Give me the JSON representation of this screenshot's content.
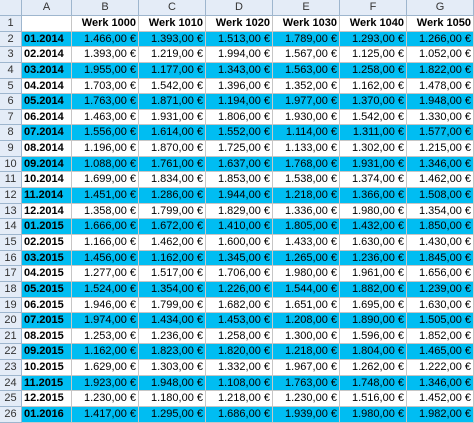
{
  "sheet": {
    "column_letters": [
      "A",
      "B",
      "C",
      "D",
      "E",
      "F",
      "G"
    ],
    "row_numbers": [
      1,
      2,
      3,
      4,
      5,
      6,
      7,
      8,
      9,
      10,
      11,
      12,
      13,
      14,
      15,
      16,
      17,
      18,
      19,
      20,
      21,
      22,
      23,
      24,
      25,
      26
    ],
    "table": {
      "columns": [
        "Werk 1000",
        "Werk 1010",
        "Werk 1020",
        "Werk 1030",
        "Werk 1040",
        "Werk 1050"
      ],
      "rows": [
        {
          "month": "01.2014",
          "values": [
            "1.466,00 €",
            "1.393,00 €",
            "1.513,00 €",
            "1.789,00 €",
            "1.293,00 €",
            "1.266,00 €"
          ]
        },
        {
          "month": "02.2014",
          "values": [
            "1.393,00 €",
            "1.219,00 €",
            "1.994,00 €",
            "1.567,00 €",
            "1.125,00 €",
            "1.052,00 €"
          ]
        },
        {
          "month": "03.2014",
          "values": [
            "1.955,00 €",
            "1.177,00 €",
            "1.343,00 €",
            "1.563,00 €",
            "1.258,00 €",
            "1.822,00 €"
          ]
        },
        {
          "month": "04.2014",
          "values": [
            "1.703,00 €",
            "1.542,00 €",
            "1.396,00 €",
            "1.352,00 €",
            "1.162,00 €",
            "1.478,00 €"
          ]
        },
        {
          "month": "05.2014",
          "values": [
            "1.763,00 €",
            "1.871,00 €",
            "1.194,00 €",
            "1.977,00 €",
            "1.370,00 €",
            "1.948,00 €"
          ]
        },
        {
          "month": "06.2014",
          "values": [
            "1.463,00 €",
            "1.931,00 €",
            "1.806,00 €",
            "1.930,00 €",
            "1.542,00 €",
            "1.330,00 €"
          ]
        },
        {
          "month": "07.2014",
          "values": [
            "1.556,00 €",
            "1.614,00 €",
            "1.552,00 €",
            "1.114,00 €",
            "1.311,00 €",
            "1.577,00 €"
          ]
        },
        {
          "month": "08.2014",
          "values": [
            "1.196,00 €",
            "1.870,00 €",
            "1.725,00 €",
            "1.133,00 €",
            "1.302,00 €",
            "1.215,00 €"
          ]
        },
        {
          "month": "09.2014",
          "values": [
            "1.088,00 €",
            "1.761,00 €",
            "1.637,00 €",
            "1.768,00 €",
            "1.931,00 €",
            "1.346,00 €"
          ]
        },
        {
          "month": "10.2014",
          "values": [
            "1.699,00 €",
            "1.834,00 €",
            "1.853,00 €",
            "1.538,00 €",
            "1.374,00 €",
            "1.462,00 €"
          ]
        },
        {
          "month": "11.2014",
          "values": [
            "1.451,00 €",
            "1.286,00 €",
            "1.944,00 €",
            "1.218,00 €",
            "1.366,00 €",
            "1.508,00 €"
          ]
        },
        {
          "month": "12.2014",
          "values": [
            "1.358,00 €",
            "1.799,00 €",
            "1.829,00 €",
            "1.336,00 €",
            "1.980,00 €",
            "1.354,00 €"
          ]
        },
        {
          "month": "01.2015",
          "values": [
            "1.666,00 €",
            "1.672,00 €",
            "1.410,00 €",
            "1.805,00 €",
            "1.432,00 €",
            "1.850,00 €"
          ]
        },
        {
          "month": "02.2015",
          "values": [
            "1.166,00 €",
            "1.462,00 €",
            "1.600,00 €",
            "1.433,00 €",
            "1.630,00 €",
            "1.430,00 €"
          ]
        },
        {
          "month": "03.2015",
          "values": [
            "1.456,00 €",
            "1.162,00 €",
            "1.345,00 €",
            "1.265,00 €",
            "1.236,00 €",
            "1.845,00 €"
          ]
        },
        {
          "month": "04.2015",
          "values": [
            "1.277,00 €",
            "1.517,00 €",
            "1.706,00 €",
            "1.980,00 €",
            "1.961,00 €",
            "1.656,00 €"
          ]
        },
        {
          "month": "05.2015",
          "values": [
            "1.524,00 €",
            "1.354,00 €",
            "1.226,00 €",
            "1.544,00 €",
            "1.882,00 €",
            "1.239,00 €"
          ]
        },
        {
          "month": "06.2015",
          "values": [
            "1.946,00 €",
            "1.799,00 €",
            "1.682,00 €",
            "1.651,00 €",
            "1.695,00 €",
            "1.630,00 €"
          ]
        },
        {
          "month": "07.2015",
          "values": [
            "1.974,00 €",
            "1.434,00 €",
            "1.453,00 €",
            "1.208,00 €",
            "1.890,00 €",
            "1.505,00 €"
          ]
        },
        {
          "month": "08.2015",
          "values": [
            "1.253,00 €",
            "1.236,00 €",
            "1.258,00 €",
            "1.300,00 €",
            "1.596,00 €",
            "1.852,00 €"
          ]
        },
        {
          "month": "09.2015",
          "values": [
            "1.162,00 €",
            "1.823,00 €",
            "1.820,00 €",
            "1.218,00 €",
            "1.804,00 €",
            "1.465,00 €"
          ]
        },
        {
          "month": "10.2015",
          "values": [
            "1.629,00 €",
            "1.303,00 €",
            "1.332,00 €",
            "1.967,00 €",
            "1.262,00 €",
            "1.222,00 €"
          ]
        },
        {
          "month": "11.2015",
          "values": [
            "1.923,00 €",
            "1.948,00 €",
            "1.108,00 €",
            "1.763,00 €",
            "1.748,00 €",
            "1.346,00 €"
          ]
        },
        {
          "month": "12.2015",
          "values": [
            "1.230,00 €",
            "1.180,00 €",
            "1.218,00 €",
            "1.230,00 €",
            "1.516,00 €",
            "1.452,00 €"
          ]
        },
        {
          "month": "01.2016",
          "values": [
            "1.417,00 €",
            "1.295,00 €",
            "1.686,00 €",
            "1.939,00 €",
            "1.980,00 €",
            "1.982,00 €"
          ]
        }
      ]
    }
  }
}
